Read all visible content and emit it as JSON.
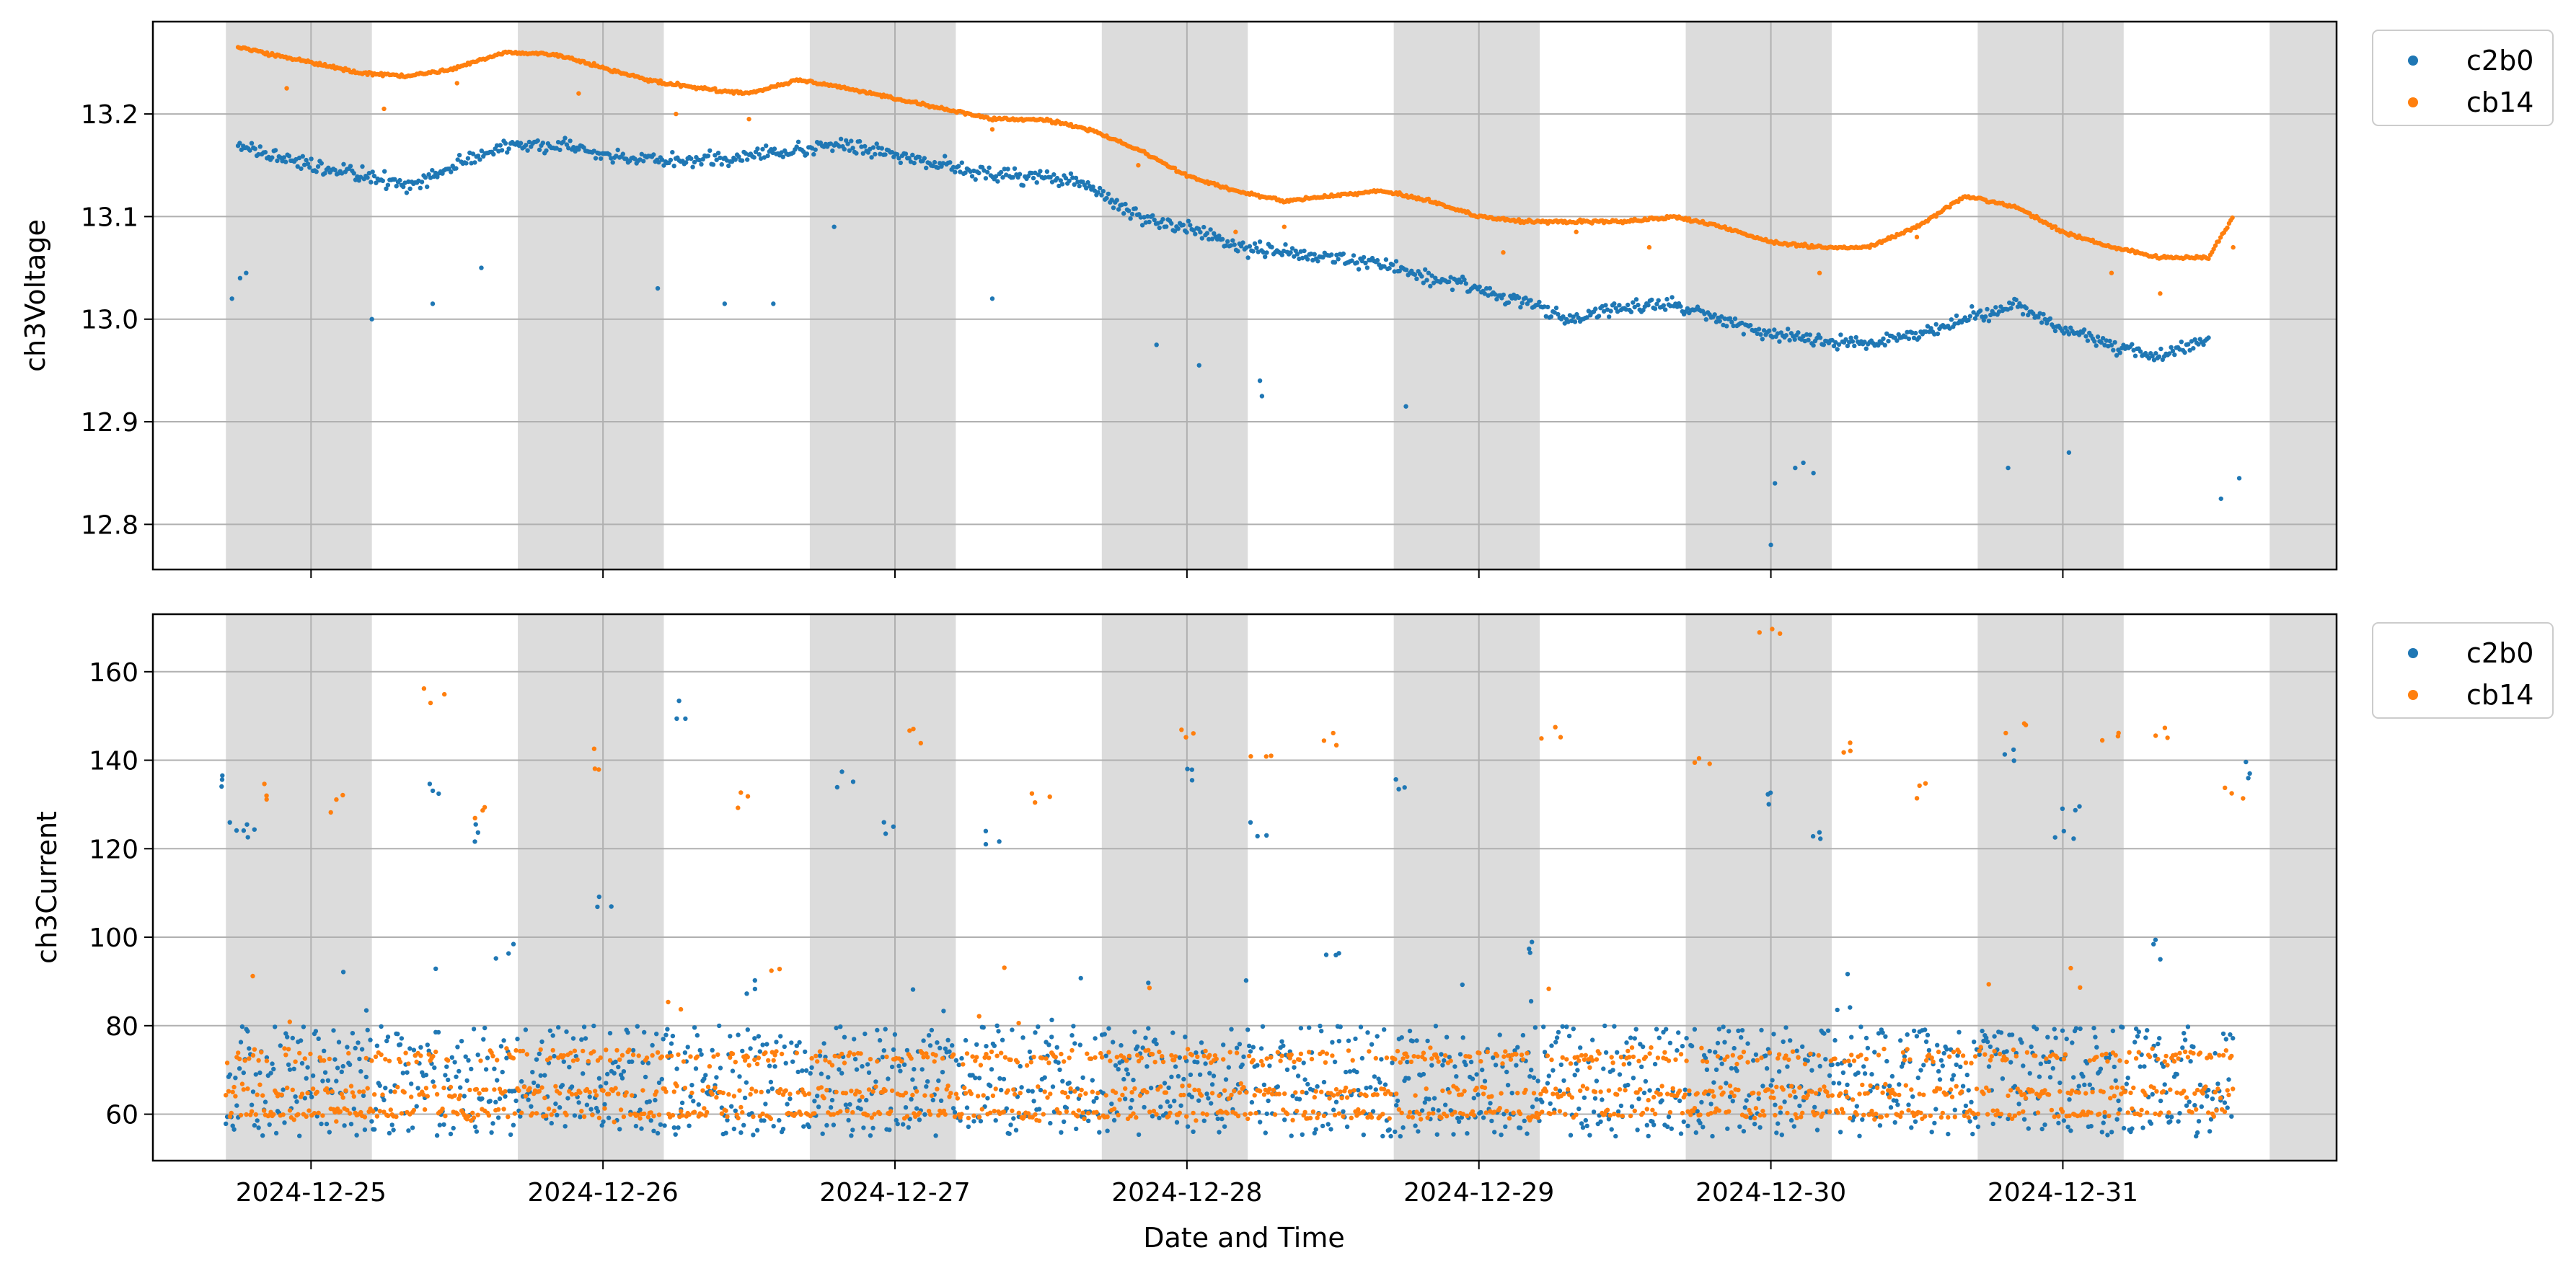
{
  "chart_data": [
    {
      "type": "scatter",
      "panel": "top",
      "ylabel": "ch3Voltage",
      "xlabel": "",
      "ylim": [
        12.756,
        13.29
      ],
      "xlim": [
        "2024-12-24 11:00",
        "2024-12-31 22:30"
      ],
      "yticks": [
        "12.8",
        "12.9",
        "13.0",
        "13.1",
        "13.2"
      ],
      "yticks_values": [
        12.8,
        12.9,
        13.0,
        13.1,
        13.2
      ],
      "xticks": [
        "2024-12-25",
        "2024-12-26",
        "2024-12-27",
        "2024-12-28",
        "2024-12-29",
        "2024-12-30",
        "2024-12-31"
      ],
      "grid": true,
      "legend_position": "outside-top-right",
      "series": [
        {
          "name": "c2b0",
          "color": "#1f77b4",
          "points": [
            [
              "2024-12-24 18:00",
              13.17
            ],
            [
              "2024-12-24 20:00",
              13.16
            ],
            [
              "2024-12-25 00:00",
              13.15
            ],
            [
              "2024-12-25 04:00",
              13.14
            ],
            [
              "2024-12-25 08:00",
              13.13
            ],
            [
              "2024-12-25 12:00",
              13.15
            ],
            [
              "2024-12-25 16:00",
              13.17
            ],
            [
              "2024-12-25 20:00",
              13.17
            ],
            [
              "2024-12-26 00:00",
              13.16
            ],
            [
              "2024-12-26 04:00",
              13.155
            ],
            [
              "2024-12-26 08:00",
              13.155
            ],
            [
              "2024-12-26 12:00",
              13.16
            ],
            [
              "2024-12-26 16:00",
              13.165
            ],
            [
              "2024-12-26 20:00",
              13.17
            ],
            [
              "2024-12-27 00:00",
              13.16
            ],
            [
              "2024-12-27 04:00",
              13.15
            ],
            [
              "2024-12-27 08:00",
              13.14
            ],
            [
              "2024-12-27 12:00",
              13.14
            ],
            [
              "2024-12-27 16:00",
              13.13
            ],
            [
              "2024-12-27 20:00",
              13.1
            ],
            [
              "2024-12-28 00:00",
              13.09
            ],
            [
              "2024-12-28 04:00",
              13.07
            ],
            [
              "2024-12-28 08:00",
              13.065
            ],
            [
              "2024-12-28 12:00",
              13.06
            ],
            [
              "2024-12-28 16:00",
              13.055
            ],
            [
              "2024-12-28 20:00",
              13.04
            ],
            [
              "2024-12-29 00:00",
              13.03
            ],
            [
              "2024-12-29 04:00",
              13.015
            ],
            [
              "2024-12-29 08:00",
              13.0
            ],
            [
              "2024-12-29 12:00",
              13.01
            ],
            [
              "2024-12-29 16:00",
              13.015
            ],
            [
              "2024-12-29 20:00",
              13.0
            ],
            [
              "2024-12-30 00:00",
              12.985
            ],
            [
              "2024-12-30 04:00",
              12.98
            ],
            [
              "2024-12-30 08:00",
              12.975
            ],
            [
              "2024-12-30 12:00",
              12.985
            ],
            [
              "2024-12-30 16:00",
              13.0
            ],
            [
              "2024-12-30 20:00",
              13.015
            ],
            [
              "2024-12-31 00:00",
              12.99
            ],
            [
              "2024-12-31 04:00",
              12.975
            ],
            [
              "2024-12-31 08:00",
              12.965
            ],
            [
              "2024-12-31 12:00",
              12.98
            ]
          ],
          "outliers": [
            [
              "2024-12-24 17:30",
              13.02
            ],
            [
              "2024-12-24 18:10",
              13.04
            ],
            [
              "2024-12-24 18:40",
              13.045
            ],
            [
              "2024-12-25 05:00",
              13.0
            ],
            [
              "2024-12-25 10:00",
              13.015
            ],
            [
              "2024-12-25 14:00",
              13.05
            ],
            [
              "2024-12-26 04:30",
              13.03
            ],
            [
              "2024-12-26 10:00",
              13.015
            ],
            [
              "2024-12-26 14:00",
              13.015
            ],
            [
              "2024-12-26 19:00",
              13.09
            ],
            [
              "2024-12-27 08:00",
              13.02
            ],
            [
              "2024-12-27 21:30",
              12.975
            ],
            [
              "2024-12-28 01:00",
              12.955
            ],
            [
              "2024-12-28 06:00",
              12.94
            ],
            [
              "2024-12-28 06:10",
              12.925
            ],
            [
              "2024-12-28 18:00",
              12.915
            ],
            [
              "2024-12-30 00:00",
              12.78
            ],
            [
              "2024-12-30 00:20",
              12.84
            ],
            [
              "2024-12-30 02:00",
              12.855
            ],
            [
              "2024-12-30 02:40",
              12.86
            ],
            [
              "2024-12-30 03:30",
              12.85
            ],
            [
              "2024-12-30 19:30",
              12.855
            ],
            [
              "2024-12-31 00:30",
              12.87
            ],
            [
              "2024-12-31 13:00",
              12.825
            ],
            [
              "2024-12-31 14:30",
              12.845
            ]
          ]
        },
        {
          "name": "cb14",
          "color": "#ff7f0e",
          "points": [
            [
              "2024-12-24 18:00",
              13.265
            ],
            [
              "2024-12-24 20:00",
              13.26
            ],
            [
              "2024-12-25 00:00",
              13.25
            ],
            [
              "2024-12-25 04:00",
              13.24
            ],
            [
              "2024-12-25 08:00",
              13.237
            ],
            [
              "2024-12-25 12:00",
              13.245
            ],
            [
              "2024-12-25 16:00",
              13.26
            ],
            [
              "2024-12-25 20:00",
              13.258
            ],
            [
              "2024-12-26 00:00",
              13.245
            ],
            [
              "2024-12-26 04:00",
              13.232
            ],
            [
              "2024-12-26 08:00",
              13.225
            ],
            [
              "2024-12-26 12:00",
              13.22
            ],
            [
              "2024-12-26 16:00",
              13.233
            ],
            [
              "2024-12-26 20:00",
              13.225
            ],
            [
              "2024-12-27 00:00",
              13.215
            ],
            [
              "2024-12-27 04:00",
              13.205
            ],
            [
              "2024-12-27 08:00",
              13.195
            ],
            [
              "2024-12-27 12:00",
              13.195
            ],
            [
              "2024-12-27 16:00",
              13.185
            ],
            [
              "2024-12-27 20:00",
              13.165
            ],
            [
              "2024-12-28 00:00",
              13.14
            ],
            [
              "2024-12-28 04:00",
              13.125
            ],
            [
              "2024-12-28 08:00",
              13.115
            ],
            [
              "2024-12-28 12:00",
              13.12
            ],
            [
              "2024-12-28 16:00",
              13.125
            ],
            [
              "2024-12-28 20:00",
              13.115
            ],
            [
              "2024-12-29 00:00",
              13.1
            ],
            [
              "2024-12-29 04:00",
              13.095
            ],
            [
              "2024-12-29 08:00",
              13.095
            ],
            [
              "2024-12-29 12:00",
              13.095
            ],
            [
              "2024-12-29 16:00",
              13.1
            ],
            [
              "2024-12-29 20:00",
              13.09
            ],
            [
              "2024-12-30 00:00",
              13.075
            ],
            [
              "2024-12-30 04:00",
              13.07
            ],
            [
              "2024-12-30 08:00",
              13.07
            ],
            [
              "2024-12-30 12:00",
              13.09
            ],
            [
              "2024-12-30 16:00",
              13.12
            ],
            [
              "2024-12-30 20:00",
              13.11
            ],
            [
              "2024-12-31 00:00",
              13.085
            ],
            [
              "2024-12-31 04:00",
              13.07
            ],
            [
              "2024-12-31 08:00",
              13.06
            ],
            [
              "2024-12-31 12:00",
              13.06
            ],
            [
              "2024-12-31 14:00",
              13.1
            ]
          ],
          "outliers": [
            [
              "2024-12-24 22:00",
              13.225
            ],
            [
              "2024-12-25 06:00",
              13.205
            ],
            [
              "2024-12-25 12:00",
              13.23
            ],
            [
              "2024-12-25 22:00",
              13.22
            ],
            [
              "2024-12-26 06:00",
              13.2
            ],
            [
              "2024-12-26 12:00",
              13.195
            ],
            [
              "2024-12-27 08:00",
              13.185
            ],
            [
              "2024-12-27 20:00",
              13.15
            ],
            [
              "2024-12-28 04:00",
              13.085
            ],
            [
              "2024-12-28 08:00",
              13.09
            ],
            [
              "2024-12-29 02:00",
              13.065
            ],
            [
              "2024-12-29 08:00",
              13.085
            ],
            [
              "2024-12-29 14:00",
              13.07
            ],
            [
              "2024-12-30 04:00",
              13.045
            ],
            [
              "2024-12-30 12:00",
              13.08
            ],
            [
              "2024-12-31 04:00",
              13.045
            ],
            [
              "2024-12-31 08:00",
              13.025
            ],
            [
              "2024-12-31 14:00",
              13.07
            ]
          ]
        }
      ]
    },
    {
      "type": "scatter",
      "panel": "bottom",
      "ylabel": "ch3Current",
      "xlabel": "Date and Time",
      "ylim": [
        49.5,
        173
      ],
      "xlim": [
        "2024-12-24 11:00",
        "2024-12-31 22:30"
      ],
      "yticks": [
        "60",
        "80",
        "100",
        "120",
        "140",
        "160"
      ],
      "yticks_values": [
        60,
        80,
        100,
        120,
        140,
        160
      ],
      "xticks": [
        "2024-12-25",
        "2024-12-26",
        "2024-12-27",
        "2024-12-28",
        "2024-12-29",
        "2024-12-30",
        "2024-12-31"
      ],
      "grid": true,
      "legend_position": "outside-top-right",
      "series": [
        {
          "name": "c2b0",
          "color": "#1f77b4",
          "band_range": [
            55,
            80
          ],
          "points": [
            [
              "2024-12-24 17:00",
              136.5
            ],
            [
              "2024-12-24 18:00",
              124.5
            ],
            [
              "2024-12-24 18:30",
              123.5
            ],
            [
              "2024-12-25 10:00",
              133.5
            ],
            [
              "2024-12-25 14:00",
              124
            ],
            [
              "2024-12-25 16:00",
              97.5
            ],
            [
              "2024-12-26 00:00",
              106
            ],
            [
              "2024-12-26 06:00",
              151.5
            ],
            [
              "2024-12-26 12:00",
              90
            ],
            [
              "2024-12-26 20:00",
              136.5
            ],
            [
              "2024-12-27 00:00",
              123.5
            ],
            [
              "2024-12-27 08:00",
              122.5
            ],
            [
              "2024-12-28 00:00",
              137
            ],
            [
              "2024-12-28 06:00",
              125
            ],
            [
              "2024-12-28 12:00",
              97.5
            ],
            [
              "2024-12-28 18:00",
              136
            ],
            [
              "2024-12-29 04:00",
              96.5
            ],
            [
              "2024-12-30 00:00",
              132
            ],
            [
              "2024-12-30 04:00",
              122.5
            ],
            [
              "2024-12-30 20:00",
              141
            ],
            [
              "2024-12-31 00:00",
              123
            ],
            [
              "2024-12-31 00:30",
              130
            ],
            [
              "2024-12-31 08:00",
              97.5
            ],
            [
              "2024-12-31 14:30",
              138.5
            ]
          ]
        },
        {
          "name": "cb14",
          "color": "#ff7f0e",
          "band_range": [
            60,
            78
          ],
          "points": [
            [
              "2024-12-24 20:00",
              132
            ],
            [
              "2024-12-25 02:00",
              130
            ],
            [
              "2024-12-25 10:00",
              154
            ],
            [
              "2024-12-25 14:00",
              129
            ],
            [
              "2024-12-26 00:00",
              140
            ],
            [
              "2024-12-26 12:00",
              131
            ],
            [
              "2024-12-27 02:00",
              145
            ],
            [
              "2024-12-27 12:00",
              130
            ],
            [
              "2024-12-28 00:00",
              146
            ],
            [
              "2024-12-28 06:00",
              140
            ],
            [
              "2024-12-28 12:00",
              145
            ],
            [
              "2024-12-29 06:00",
              146
            ],
            [
              "2024-12-29 18:00",
              140
            ],
            [
              "2024-12-30 00:00",
              168
            ],
            [
              "2024-12-30 06:00",
              142.5
            ],
            [
              "2024-12-30 12:00",
              133
            ],
            [
              "2024-12-30 20:00",
              147.5
            ],
            [
              "2024-12-31 04:00",
              146
            ],
            [
              "2024-12-31 08:00",
              145
            ],
            [
              "2024-12-31 14:00",
              132.5
            ]
          ]
        }
      ]
    }
  ],
  "legend": {
    "items": [
      {
        "label": "c2b0",
        "color": "#1f77b4"
      },
      {
        "label": "cb14",
        "color": "#ff7f0e"
      }
    ]
  },
  "shading": {
    "color": "#dcdcdc",
    "note_ranges_hours": "night periods",
    "ranges": [
      [
        "2024-12-24 17:00",
        "2024-12-25 05:00"
      ],
      [
        "2024-12-25 17:00",
        "2024-12-26 05:00"
      ],
      [
        "2024-12-26 17:00",
        "2024-12-27 05:00"
      ],
      [
        "2024-12-27 17:00",
        "2024-12-28 05:00"
      ],
      [
        "2024-12-28 17:00",
        "2024-12-29 05:00"
      ],
      [
        "2024-12-29 17:00",
        "2024-12-30 05:00"
      ],
      [
        "2024-12-30 17:00",
        "2024-12-31 05:00"
      ],
      [
        "2024-12-31 17:00",
        "2024-12-31 22:30"
      ]
    ]
  }
}
